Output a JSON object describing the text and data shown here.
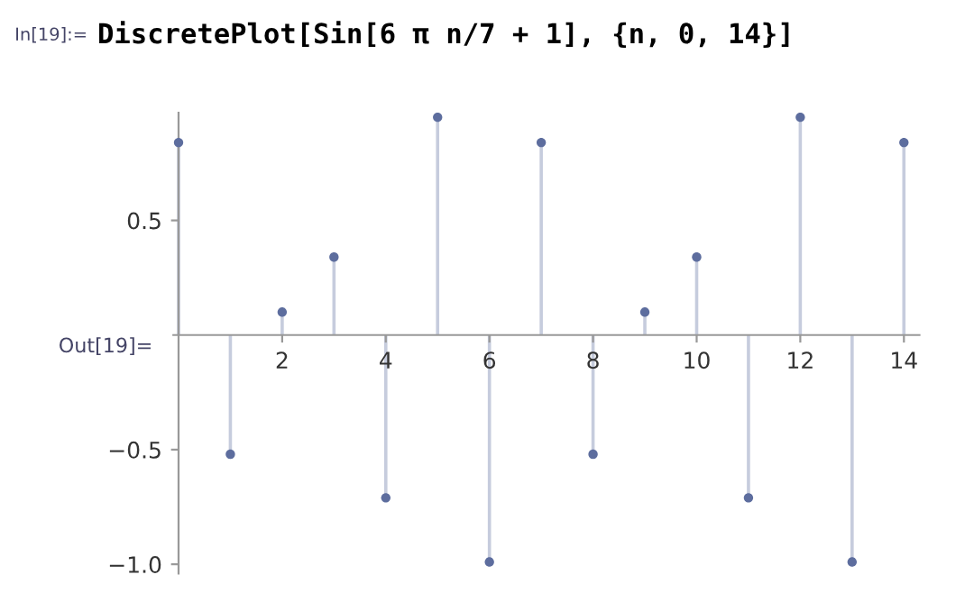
{
  "chart_data": {
    "type": "lollipop",
    "title": "DiscretePlot[Sin[6 π n/7 + 1], {n, 0, 14}]",
    "annotations": [
      "In[19]:=",
      "Out[19]="
    ],
    "x": [
      0,
      1,
      2,
      3,
      4,
      5,
      6,
      7,
      8,
      9,
      10,
      11,
      12,
      13,
      14
    ],
    "series": [
      {
        "color": "#5d6d9e",
        "values": [
          0.84,
          -0.52,
          0.1,
          0.34,
          -0.71,
          0.95,
          -0.99,
          0.84,
          -0.52,
          0.1,
          0.34,
          -0.71,
          0.95,
          -0.99,
          0.84
        ]
      }
    ],
    "xlim": [
      -0.1,
      14.3
    ],
    "ylim": [
      -1.04,
      0.97
    ],
    "xticks": [
      2,
      4,
      6,
      8,
      10,
      12,
      14
    ],
    "yticks": [
      {
        "value": -1.0,
        "label": "−1.0"
      },
      {
        "value": -0.5,
        "label": "−0.5"
      },
      0.5
    ],
    "marker": "circle",
    "grid": false,
    "legend": false
  }
}
